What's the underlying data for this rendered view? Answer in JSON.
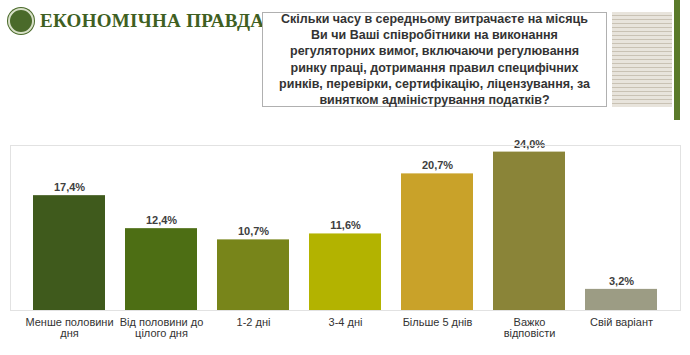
{
  "chart_data": {
    "type": "bar",
    "source": "ЕКОНОМІЧНА ПРАВДА",
    "title": "Скільки часу в середньому витрачаєте на місяць Ви чи Ваші співробітники на виконання регуляторних вимог, включаючи регулювання ринку праці, дотримання правил специфічних ринків, перевірки, сертифікацію, ліцензування, за винятком адміністрування податків?",
    "categories": [
      "Менше половини дня",
      "Від половини до цілого дня",
      "1-2 дні",
      "3-4 дні",
      "Більше 5 днів",
      "Важко відповісти",
      "Свій варіант"
    ],
    "values": [
      17.4,
      12.4,
      10.7,
      11.6,
      20.7,
      24.0,
      3.2
    ],
    "value_labels": [
      "17,4%",
      "12,4%",
      "10,7%",
      "11,6%",
      "20,7%",
      "24,0%",
      "3,2%"
    ],
    "colors": [
      "#3f5a1c",
      "#4d6e14",
      "#78851a",
      "#b3b300",
      "#c9a229",
      "#8a8438",
      "#9c9c84"
    ],
    "ylim": [
      0,
      25
    ],
    "yticks": [],
    "data_labels": true,
    "tick_labels": "x",
    "grid": false
  }
}
